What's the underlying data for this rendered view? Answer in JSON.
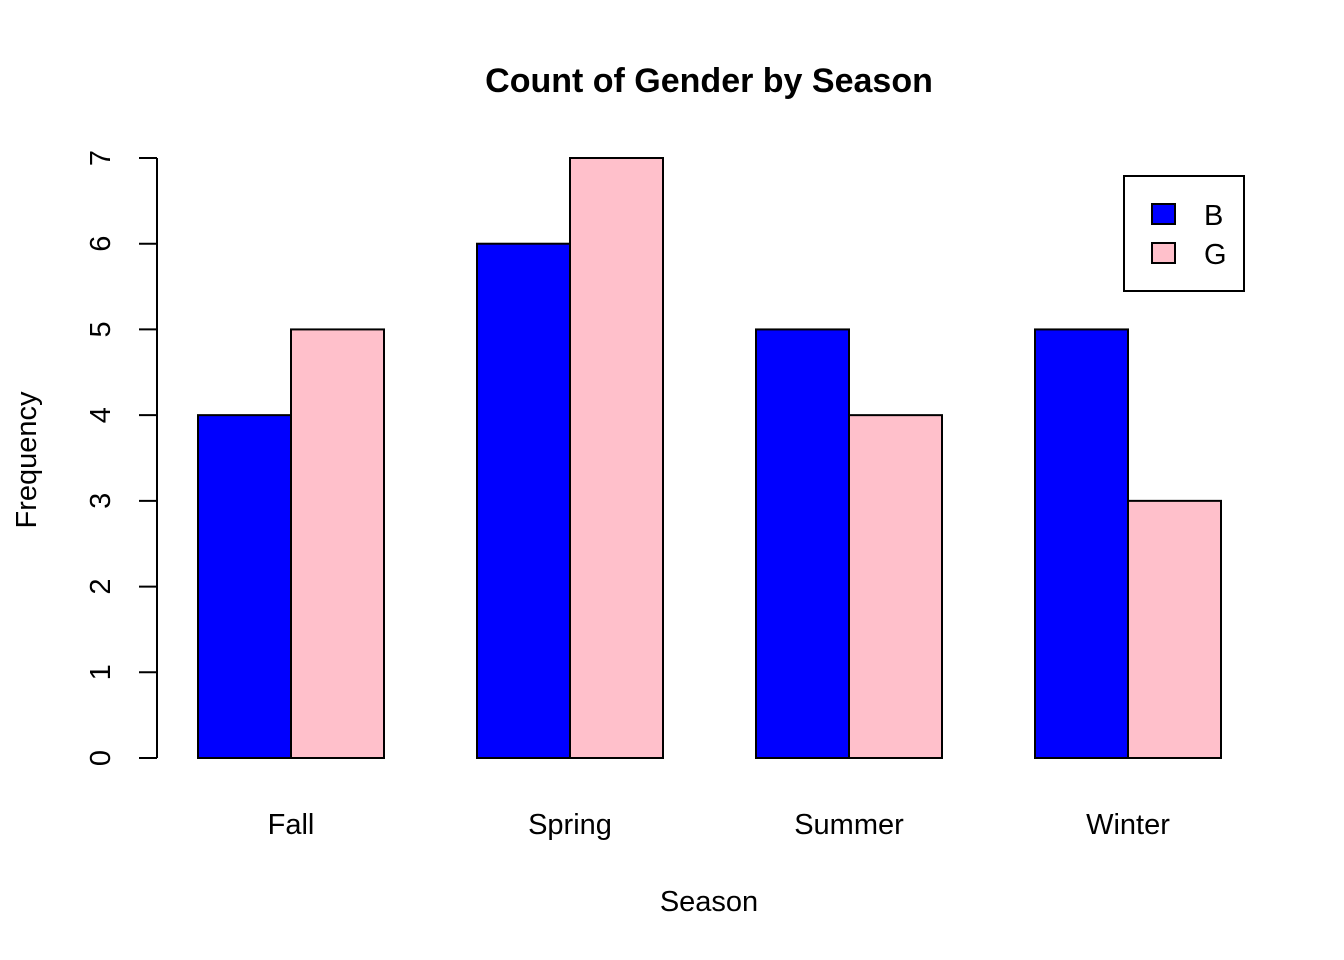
{
  "chart_data": {
    "type": "bar",
    "title": "Count of Gender by Season",
    "xlabel": "Season",
    "ylabel": "Frequency",
    "categories": [
      "Fall",
      "Spring",
      "Summer",
      "Winter"
    ],
    "series": [
      {
        "name": "B",
        "values": [
          4,
          6,
          5,
          5
        ],
        "color": "#0000ff"
      },
      {
        "name": "G",
        "values": [
          5,
          7,
          4,
          3
        ],
        "color": "#ffc0cb"
      }
    ],
    "yticks": [
      "0",
      "1",
      "2",
      "3",
      "4",
      "5",
      "6",
      "7"
    ],
    "ylim": [
      0,
      7
    ],
    "grid": false,
    "legend_position": "top-right",
    "grouping": "side-by-side"
  }
}
